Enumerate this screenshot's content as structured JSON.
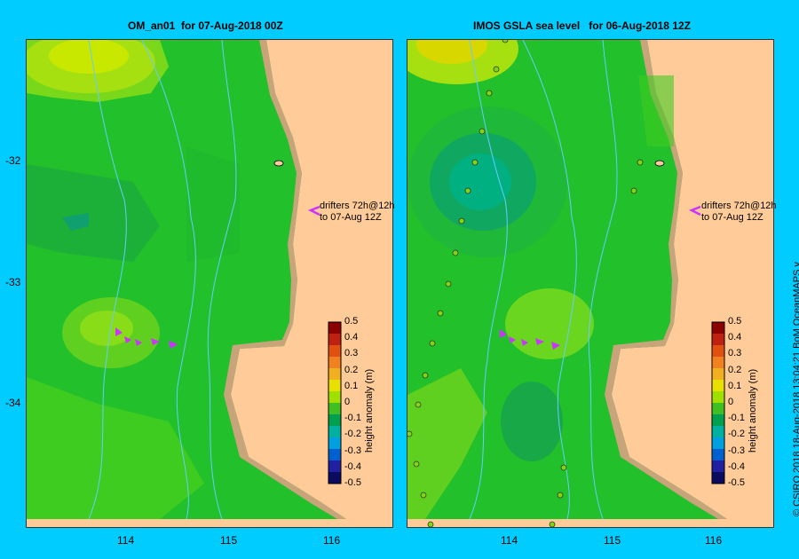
{
  "left_panel": {
    "title": "OM_an01  for 07-Aug-2018 00Z",
    "drifter_label_line1": "drifters 72h@12h",
    "drifter_label_line2": "to 07-Aug 12Z"
  },
  "right_panel": {
    "title": "IMOS GSLA sea level   for 06-Aug-2018 12Z",
    "drifter_label_line1": "drifters 72h@12h",
    "drifter_label_line2": "to 07-Aug 12Z"
  },
  "axes": {
    "y_ticks": [
      "-32",
      "-33",
      "-34"
    ],
    "x_ticks": [
      "114",
      "115",
      "116"
    ]
  },
  "colorbar": {
    "title": "height anomaly (m)",
    "ticks": [
      "0.5",
      "0.4",
      "0.3",
      "0.2",
      "0.1",
      "0",
      "-0.1",
      "-0.2",
      "-0.3",
      "-0.4",
      "-0.5"
    ],
    "colors": [
      "#8b0000",
      "#c0200f",
      "#e05010",
      "#f08020",
      "#f0b020",
      "#e8e000",
      "#a0e000",
      "#40c020",
      "#00a050",
      "#00b0a0",
      "#00a0e0",
      "#0060d0",
      "#2020a0",
      "#0a0a60"
    ]
  },
  "credit": "© CSIRO 2018   18-Aug-2018 13:04:21 BoM OceanMAPS v",
  "colors": {
    "background": "#00ccff",
    "land": "#ffcc99",
    "coast": "#c8a47a",
    "ocean_base": "#22c02a",
    "drifter": "#cc33ff"
  }
}
